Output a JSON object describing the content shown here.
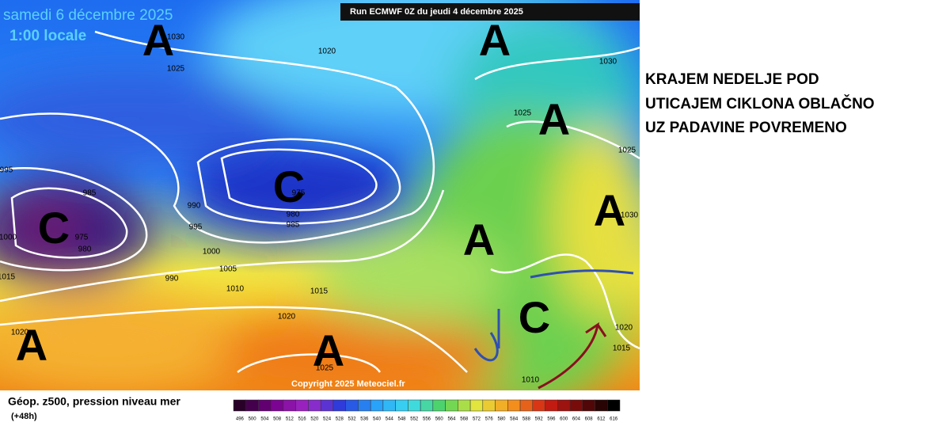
{
  "map": {
    "date": "samedi 6 décembre 2025",
    "time": "1:00 locale",
    "run": "Run ECMWF 0Z du jeudi 4 décembre 2025",
    "copyright": "Copyright 2025 Meteociel.fr",
    "pressure_systems": [
      "A",
      "A",
      "A",
      "A",
      "A",
      "A",
      "A",
      "C",
      "C",
      "C"
    ],
    "isobar_labels": [
      1030,
      1025,
      1020,
      1030,
      1025,
      1025,
      995,
      985,
      975,
      980,
      985,
      990,
      995,
      975,
      980,
      1000,
      1000,
      1005,
      990,
      1015,
      1010,
      1015,
      1020,
      1020,
      1025,
      1030,
      1020,
      1015,
      1010
    ]
  },
  "legend": {
    "title": "Géop. z500, pression niveau mer",
    "lead": "(+48h)",
    "scale": [
      496,
      500,
      504,
      508,
      512,
      516,
      520,
      524,
      528,
      532,
      536,
      540,
      544,
      548,
      552,
      556,
      560,
      564,
      568,
      572,
      576,
      580,
      584,
      588,
      592,
      596,
      600,
      604,
      608,
      612,
      616
    ]
  },
  "caption": {
    "lines": [
      "KRAJEM NEDELJE POD",
      "UTICAJEM CIKLONA OBLAČNO",
      "UZ PADAVINE POVREMENO"
    ]
  }
}
